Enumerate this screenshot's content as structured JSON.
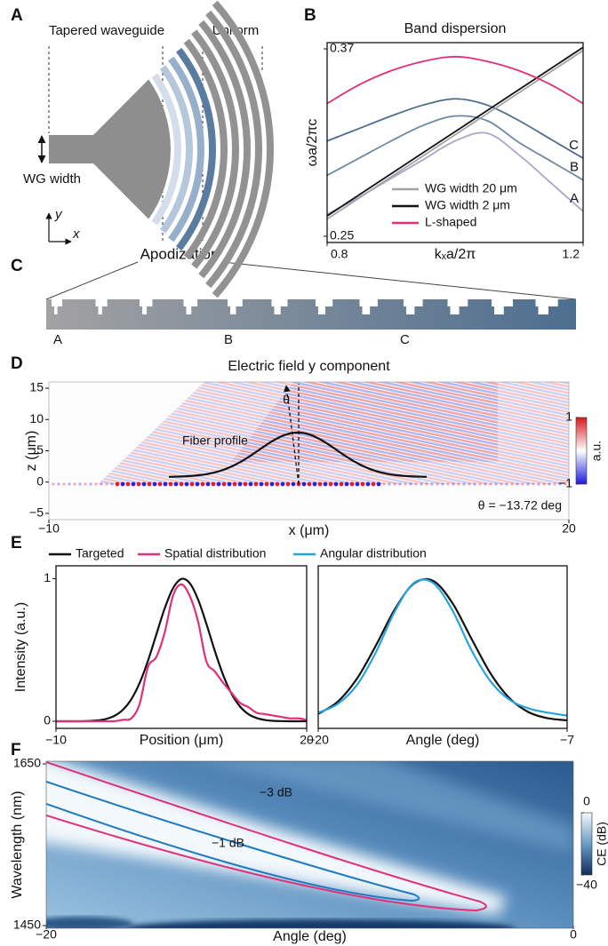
{
  "panel_labels": [
    "A",
    "B",
    "C",
    "D",
    "E",
    "F"
  ],
  "panel_a": {
    "labels": [
      "Tapered waveguide",
      "Uniform",
      "WG width",
      "y",
      "x",
      "Apodization"
    ]
  },
  "panel_c": {
    "labels": [
      "A",
      "B",
      "C"
    ]
  },
  "chart_data": [
    {
      "type": "line",
      "title": "Band dispersion",
      "x_label": "kₓa/2π",
      "y_label": "ωa/2πc",
      "x": [
        0.8,
        0.85,
        0.9,
        0.95,
        1.0,
        1.05,
        1.1,
        1.15,
        1.2
      ],
      "xlim": [
        0.8,
        1.2
      ],
      "ylim": [
        0.246,
        0.374
      ],
      "xticks": [
        0.8,
        1.2
      ],
      "yticks": [
        0.37,
        0.25
      ],
      "legend": "lower right",
      "series": [
        {
          "name": "WG width 20 μm",
          "color": "#a3a3a3",
          "values": [
            0.261,
            0.2745,
            0.288,
            0.3015,
            0.315,
            0.3285,
            0.342,
            0.3555,
            0.369
          ]
        },
        {
          "name": "WG width 2 μm",
          "color": "#111111",
          "values": [
            0.263,
            0.2765,
            0.29,
            0.3035,
            0.317,
            0.3305,
            0.344,
            0.3575,
            0.371
          ]
        },
        {
          "name": "L-shaped",
          "color": "#e0307a",
          "values": [
            0.335,
            0.347,
            0.356,
            0.362,
            0.365,
            0.362,
            0.356,
            0.347,
            0.335
          ]
        }
      ],
      "bands": [
        {
          "name": "A",
          "color": "#a6a8c8",
          "values": [
            0.264,
            0.275,
            0.287,
            0.299,
            0.311,
            0.316,
            0.302,
            0.284,
            0.266
          ]
        },
        {
          "name": "B",
          "color": "#6f88a2",
          "values": [
            0.289,
            0.3,
            0.311,
            0.321,
            0.327,
            0.324,
            0.31,
            0.298,
            0.286
          ]
        },
        {
          "name": "C",
          "color": "#4f6d8c",
          "values": [
            0.311,
            0.319,
            0.327,
            0.334,
            0.338,
            0.334,
            0.324,
            0.312,
            0.3
          ]
        }
      ]
    },
    {
      "type": "heatmap",
      "title": "Electric field y component",
      "x_label": "x (μm)",
      "y_label": "z (μm)",
      "xlim": [
        -10,
        20
      ],
      "ylim": [
        -6,
        16
      ],
      "xticks": [
        {
          "value": -10,
          "label": "−10"
        },
        20
      ],
      "yticks": [
        15,
        10,
        5,
        0,
        {
          "value": -5,
          "label": "−5"
        }
      ],
      "colorbar": {
        "label": "a.u.",
        "lim": [
          -1,
          1
        ],
        "ticks": [
          1,
          {
            "value": -1,
            "label": "−1"
          }
        ]
      },
      "annotations": [
        "Fiber profile",
        "θ",
        "θ = −13.72 deg"
      ]
    },
    {
      "type": "line",
      "x_label": "Position (μm)",
      "y_label": "Intensity (a.u.)",
      "x": [
        -10,
        -9,
        -8,
        -7,
        -6,
        -5,
        -4,
        -3,
        -2,
        -1,
        0,
        1,
        2,
        3,
        4,
        5,
        6,
        7,
        8,
        9,
        10,
        11,
        12,
        13,
        14,
        15,
        16,
        17,
        18,
        19,
        20
      ],
      "xlim": [
        -10,
        20
      ],
      "ylim": [
        -0.05,
        1.09
      ],
      "xticks": [
        {
          "value": -10,
          "label": "−10"
        },
        20
      ],
      "yticks": [
        0,
        1
      ],
      "series": [
        {
          "name": "Targeted",
          "color": "#111111",
          "values": [
            0,
            0,
            0,
            0,
            0.002,
            0.006,
            0.016,
            0.038,
            0.08,
            0.153,
            0.267,
            0.423,
            0.607,
            0.79,
            0.932,
            0.998,
            0.969,
            0.854,
            0.683,
            0.495,
            0.325,
            0.194,
            0.105,
            0.051,
            0.023,
            0.009,
            0.003,
            0.001,
            0,
            0,
            0
          ]
        },
        {
          "name": "Spatial distribution",
          "color": "#e0307a",
          "values": [
            0,
            0,
            0,
            0,
            0,
            0,
            0,
            0,
            0.01,
            0.02,
            0.12,
            0.38,
            0.45,
            0.62,
            0.88,
            0.96,
            0.88,
            0.7,
            0.42,
            0.35,
            0.27,
            0.2,
            0.13,
            0.1,
            0.06,
            0.05,
            0.04,
            0.03,
            0.02,
            0.02,
            0.01
          ]
        }
      ]
    },
    {
      "type": "line",
      "x_label": "Angle (deg)",
      "x": [
        -20,
        -19,
        -18,
        -17,
        -16,
        -15,
        -14,
        -13,
        -12,
        -11,
        -10,
        -9,
        -8,
        -7
      ],
      "xlim": [
        -20,
        -7
      ],
      "ylim": [
        -0.05,
        1.09
      ],
      "xticks": [
        {
          "value": -20,
          "label": "−20"
        },
        {
          "value": -7,
          "label": "−7"
        }
      ],
      "series": [
        {
          "color": "#111111",
          "values": [
            0.052,
            0.135,
            0.294,
            0.528,
            0.785,
            0.966,
            0.985,
            0.831,
            0.58,
            0.335,
            0.16,
            0.063,
            0.021,
            0.006
          ]
        },
        {
          "name": "Angular distribution",
          "color": "#29a3e0",
          "values": [
            0.06,
            0.12,
            0.25,
            0.48,
            0.77,
            0.97,
            0.97,
            0.78,
            0.5,
            0.28,
            0.15,
            0.09,
            0.06,
            0.04
          ]
        }
      ]
    },
    {
      "type": "heatmap",
      "x_label": "Angle (deg)",
      "y_label": "Wavelength (nm)",
      "xlim": [
        -20,
        0
      ],
      "ylim": [
        1450,
        1650
      ],
      "xticks": [
        {
          "value": -20,
          "label": "−20"
        },
        0
      ],
      "yticks": [
        1650,
        1450
      ],
      "colorbar": {
        "label": "CE (dB)",
        "lim": [
          -40,
          0
        ],
        "ticks": [
          0,
          {
            "value": -40,
            "label": "−40"
          }
        ]
      },
      "contours": [
        {
          "label": "−3 dB",
          "color": "#e0307a"
        },
        {
          "label": "−1 dB",
          "color": "#1f7ac0"
        }
      ]
    }
  ]
}
